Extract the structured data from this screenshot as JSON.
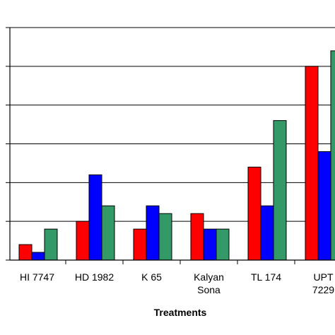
{
  "chart_data": {
    "type": "bar",
    "xlabel": "Treatments",
    "ylabel": "",
    "categories": [
      [
        "HI 7747"
      ],
      [
        "HD 1982"
      ],
      [
        "K 65"
      ],
      [
        "Kalyan",
        "Sona"
      ],
      [
        "TL 174"
      ],
      [
        "UPT",
        "7229"
      ]
    ],
    "series": [
      {
        "color": "#ff0000",
        "values": [
          0.4,
          1.0,
          0.8,
          1.2,
          2.4,
          5.0
        ]
      },
      {
        "color": "#0000ff",
        "values": [
          0.2,
          2.2,
          1.4,
          0.8,
          1.4,
          2.8
        ]
      },
      {
        "color": "#339966",
        "values": [
          0.8,
          1.4,
          1.2,
          0.8,
          3.6,
          5.4
        ]
      }
    ],
    "ylim": [
      0,
      6
    ],
    "grid": true,
    "legend": "none"
  }
}
